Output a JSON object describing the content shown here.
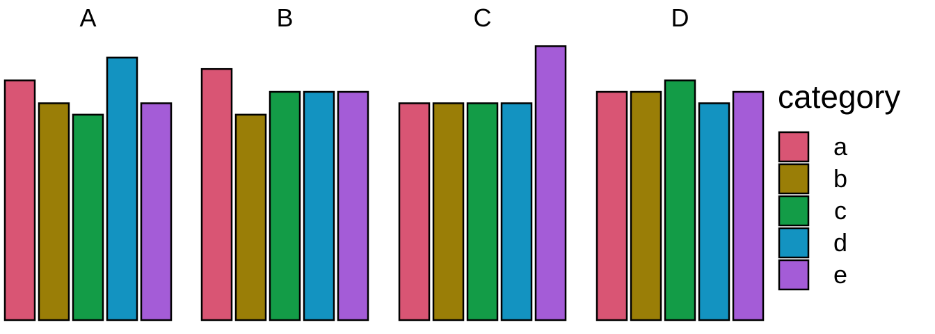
{
  "chart_data": {
    "type": "bar",
    "facets": [
      "A",
      "B",
      "C",
      "D"
    ],
    "categories": [
      "a",
      "b",
      "c",
      "d",
      "e"
    ],
    "values": {
      "A": [
        21,
        19,
        18,
        23,
        19
      ],
      "B": [
        22,
        18,
        20,
        20,
        20
      ],
      "C": [
        19,
        19,
        19,
        19,
        24
      ],
      "D": [
        20,
        20,
        21,
        19,
        20
      ]
    },
    "ylim": [
      0,
      25
    ],
    "grid": false,
    "legend": {
      "title": "category",
      "position": "right"
    },
    "colors": {
      "a": "#d95574",
      "b": "#9a7e07",
      "c": "#139c47",
      "d": "#1393c1",
      "e": "#a45cd7"
    }
  }
}
